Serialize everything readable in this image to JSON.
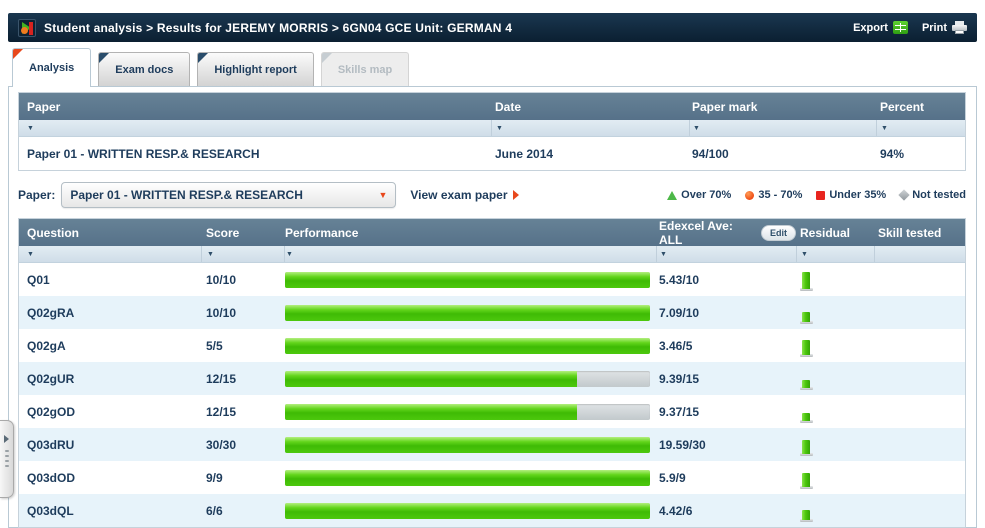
{
  "header": {
    "breadcrumb": "Student analysis > Results for JEREMY MORRIS > 6GN04 GCE Unit: GERMAN 4",
    "export_label": "Export",
    "print_label": "Print"
  },
  "tabs": [
    {
      "label": "Analysis",
      "state": "active"
    },
    {
      "label": "Exam docs",
      "state": "normal"
    },
    {
      "label": "Highlight report",
      "state": "normal"
    },
    {
      "label": "Skills map",
      "state": "disabled"
    }
  ],
  "paper_table": {
    "columns": [
      "Paper",
      "Date",
      "Paper mark",
      "Percent"
    ],
    "rows": [
      {
        "paper": "Paper 01 - WRITTEN RESP.& RESEARCH",
        "date": "June 2014",
        "paper_mark": "94/100",
        "percent": "94%"
      }
    ]
  },
  "paper_selector": {
    "label": "Paper:",
    "selected": "Paper 01 - WRITTEN RESP.& RESEARCH",
    "view_link": "View exam paper"
  },
  "legend": [
    {
      "symbol": "triangle",
      "color": "#4db848",
      "label": "Over 70%"
    },
    {
      "symbol": "circle",
      "color": "#ef4d17",
      "label": "35 - 70%"
    },
    {
      "symbol": "square",
      "color": "#e8251f",
      "label": "Under 35%"
    },
    {
      "symbol": "diamond",
      "color": "#9aa0a6",
      "label": "Not tested"
    }
  ],
  "question_table": {
    "columns": [
      "Question",
      "Score",
      "Performance",
      "Edexcel Ave: ALL",
      "Residual",
      "Skill tested"
    ],
    "edit_button": "Edit",
    "rows": [
      {
        "question": "Q01",
        "score": "10/10",
        "performance_pct": 100,
        "edexcel_ave": "5.43/10",
        "residual_level": 17,
        "skill": ""
      },
      {
        "question": "Q02gRA",
        "score": "10/10",
        "performance_pct": 100,
        "edexcel_ave": "7.09/10",
        "residual_level": 10,
        "skill": ""
      },
      {
        "question": "Q02gA",
        "score": "5/5",
        "performance_pct": 100,
        "edexcel_ave": "3.46/5",
        "residual_level": 15,
        "skill": ""
      },
      {
        "question": "Q02gUR",
        "score": "12/15",
        "performance_pct": 80,
        "edexcel_ave": "9.39/15",
        "residual_level": 8,
        "skill": ""
      },
      {
        "question": "Q02gOD",
        "score": "12/15",
        "performance_pct": 80,
        "edexcel_ave": "9.37/15",
        "residual_level": 8,
        "skill": ""
      },
      {
        "question": "Q03dRU",
        "score": "30/30",
        "performance_pct": 100,
        "edexcel_ave": "19.59/30",
        "residual_level": 14,
        "skill": ""
      },
      {
        "question": "Q03dOD",
        "score": "9/9",
        "performance_pct": 100,
        "edexcel_ave": "5.9/9",
        "residual_level": 14,
        "skill": ""
      },
      {
        "question": "Q03dQL",
        "score": "6/6",
        "performance_pct": 100,
        "edexcel_ave": "4.42/6",
        "residual_level": 10,
        "skill": ""
      }
    ]
  },
  "colors": {
    "topbar_navy": "#0b1f31",
    "table_header_slate": "#5d7b91",
    "row_alt_blue": "#e7f3fa",
    "performance_green": "#4cc80d",
    "track_gray": "#c9cfd3",
    "accent_orange": "#e8481c",
    "text_navy": "#1e3c5c"
  }
}
